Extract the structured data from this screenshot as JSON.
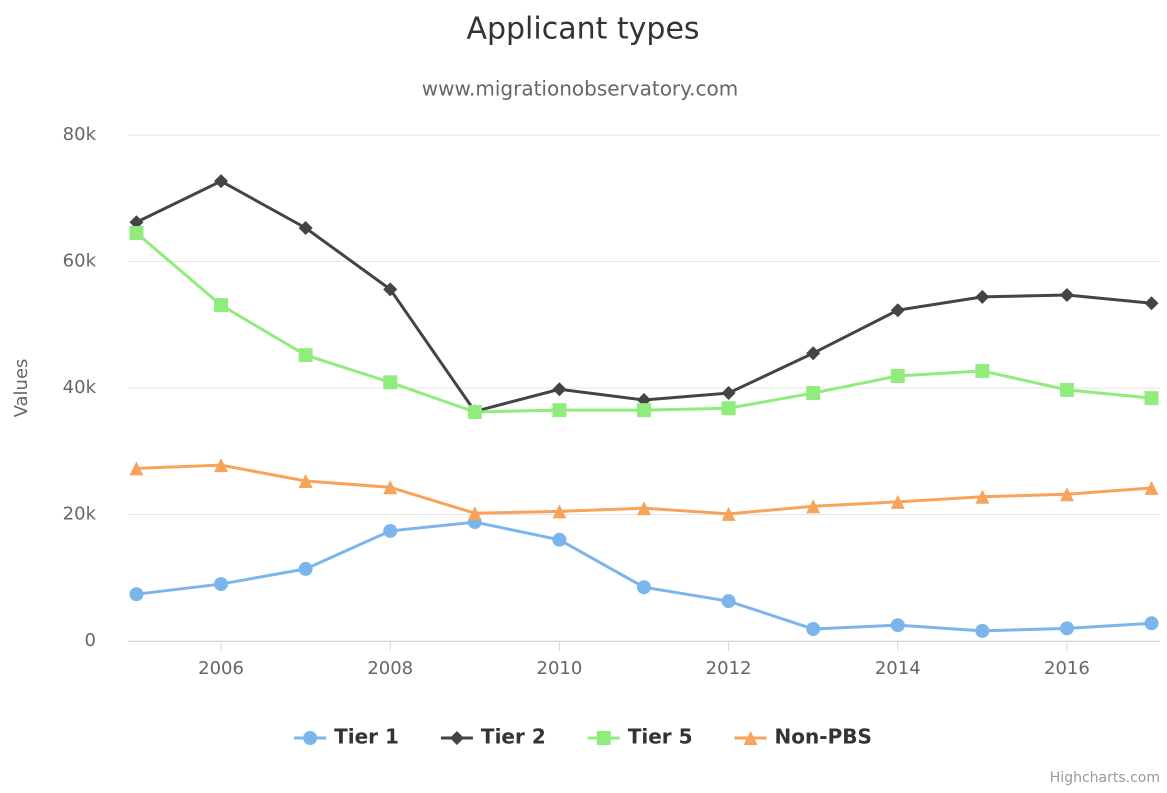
{
  "chart_data": {
    "type": "line",
    "title": "Applicant types",
    "subtitle": "www.migrationobservatory.com",
    "y_axis_label": "Values",
    "credits": "Highcharts.com",
    "x": [
      2005,
      2006,
      2007,
      2008,
      2009,
      2010,
      2011,
      2012,
      2013,
      2014,
      2015,
      2016,
      2017
    ],
    "xlim": [
      2004.9,
      2017.1
    ],
    "xticks": [
      2006,
      2008,
      2010,
      2012,
      2014,
      2016
    ],
    "ylim": [
      0,
      80000
    ],
    "yticks": [
      {
        "value": 0,
        "label": "0"
      },
      {
        "value": 20000,
        "label": "20k"
      },
      {
        "value": 40000,
        "label": "40k"
      },
      {
        "value": 60000,
        "label": "60k"
      },
      {
        "value": 80000,
        "label": "80k"
      }
    ],
    "grid": true,
    "legend": "bottom",
    "series": [
      {
        "name": "Tier 1",
        "color": "#7cb5ec",
        "marker": "circle",
        "values": [
          7400,
          9000,
          11400,
          17400,
          18800,
          16000,
          8500,
          6300,
          1900,
          2500,
          1600,
          2000,
          2800
        ]
      },
      {
        "name": "Tier 2",
        "color": "#434348",
        "marker": "diamond",
        "values": [
          66200,
          72700,
          65300,
          55600,
          36300,
          39800,
          38100,
          39200,
          45500,
          52300,
          54400,
          54700,
          53400
        ]
      },
      {
        "name": "Tier 5",
        "color": "#90ed7d",
        "marker": "square",
        "values": [
          64500,
          53100,
          45200,
          40900,
          36200,
          36500,
          36500,
          36800,
          39200,
          41900,
          42700,
          39700,
          38400
        ]
      },
      {
        "name": "Non-PBS",
        "color": "#f7a35c",
        "marker": "triangle",
        "values": [
          27300,
          27800,
          25300,
          24300,
          20200,
          20500,
          21000,
          20100,
          21300,
          22000,
          22800,
          23200,
          24200
        ]
      }
    ]
  }
}
